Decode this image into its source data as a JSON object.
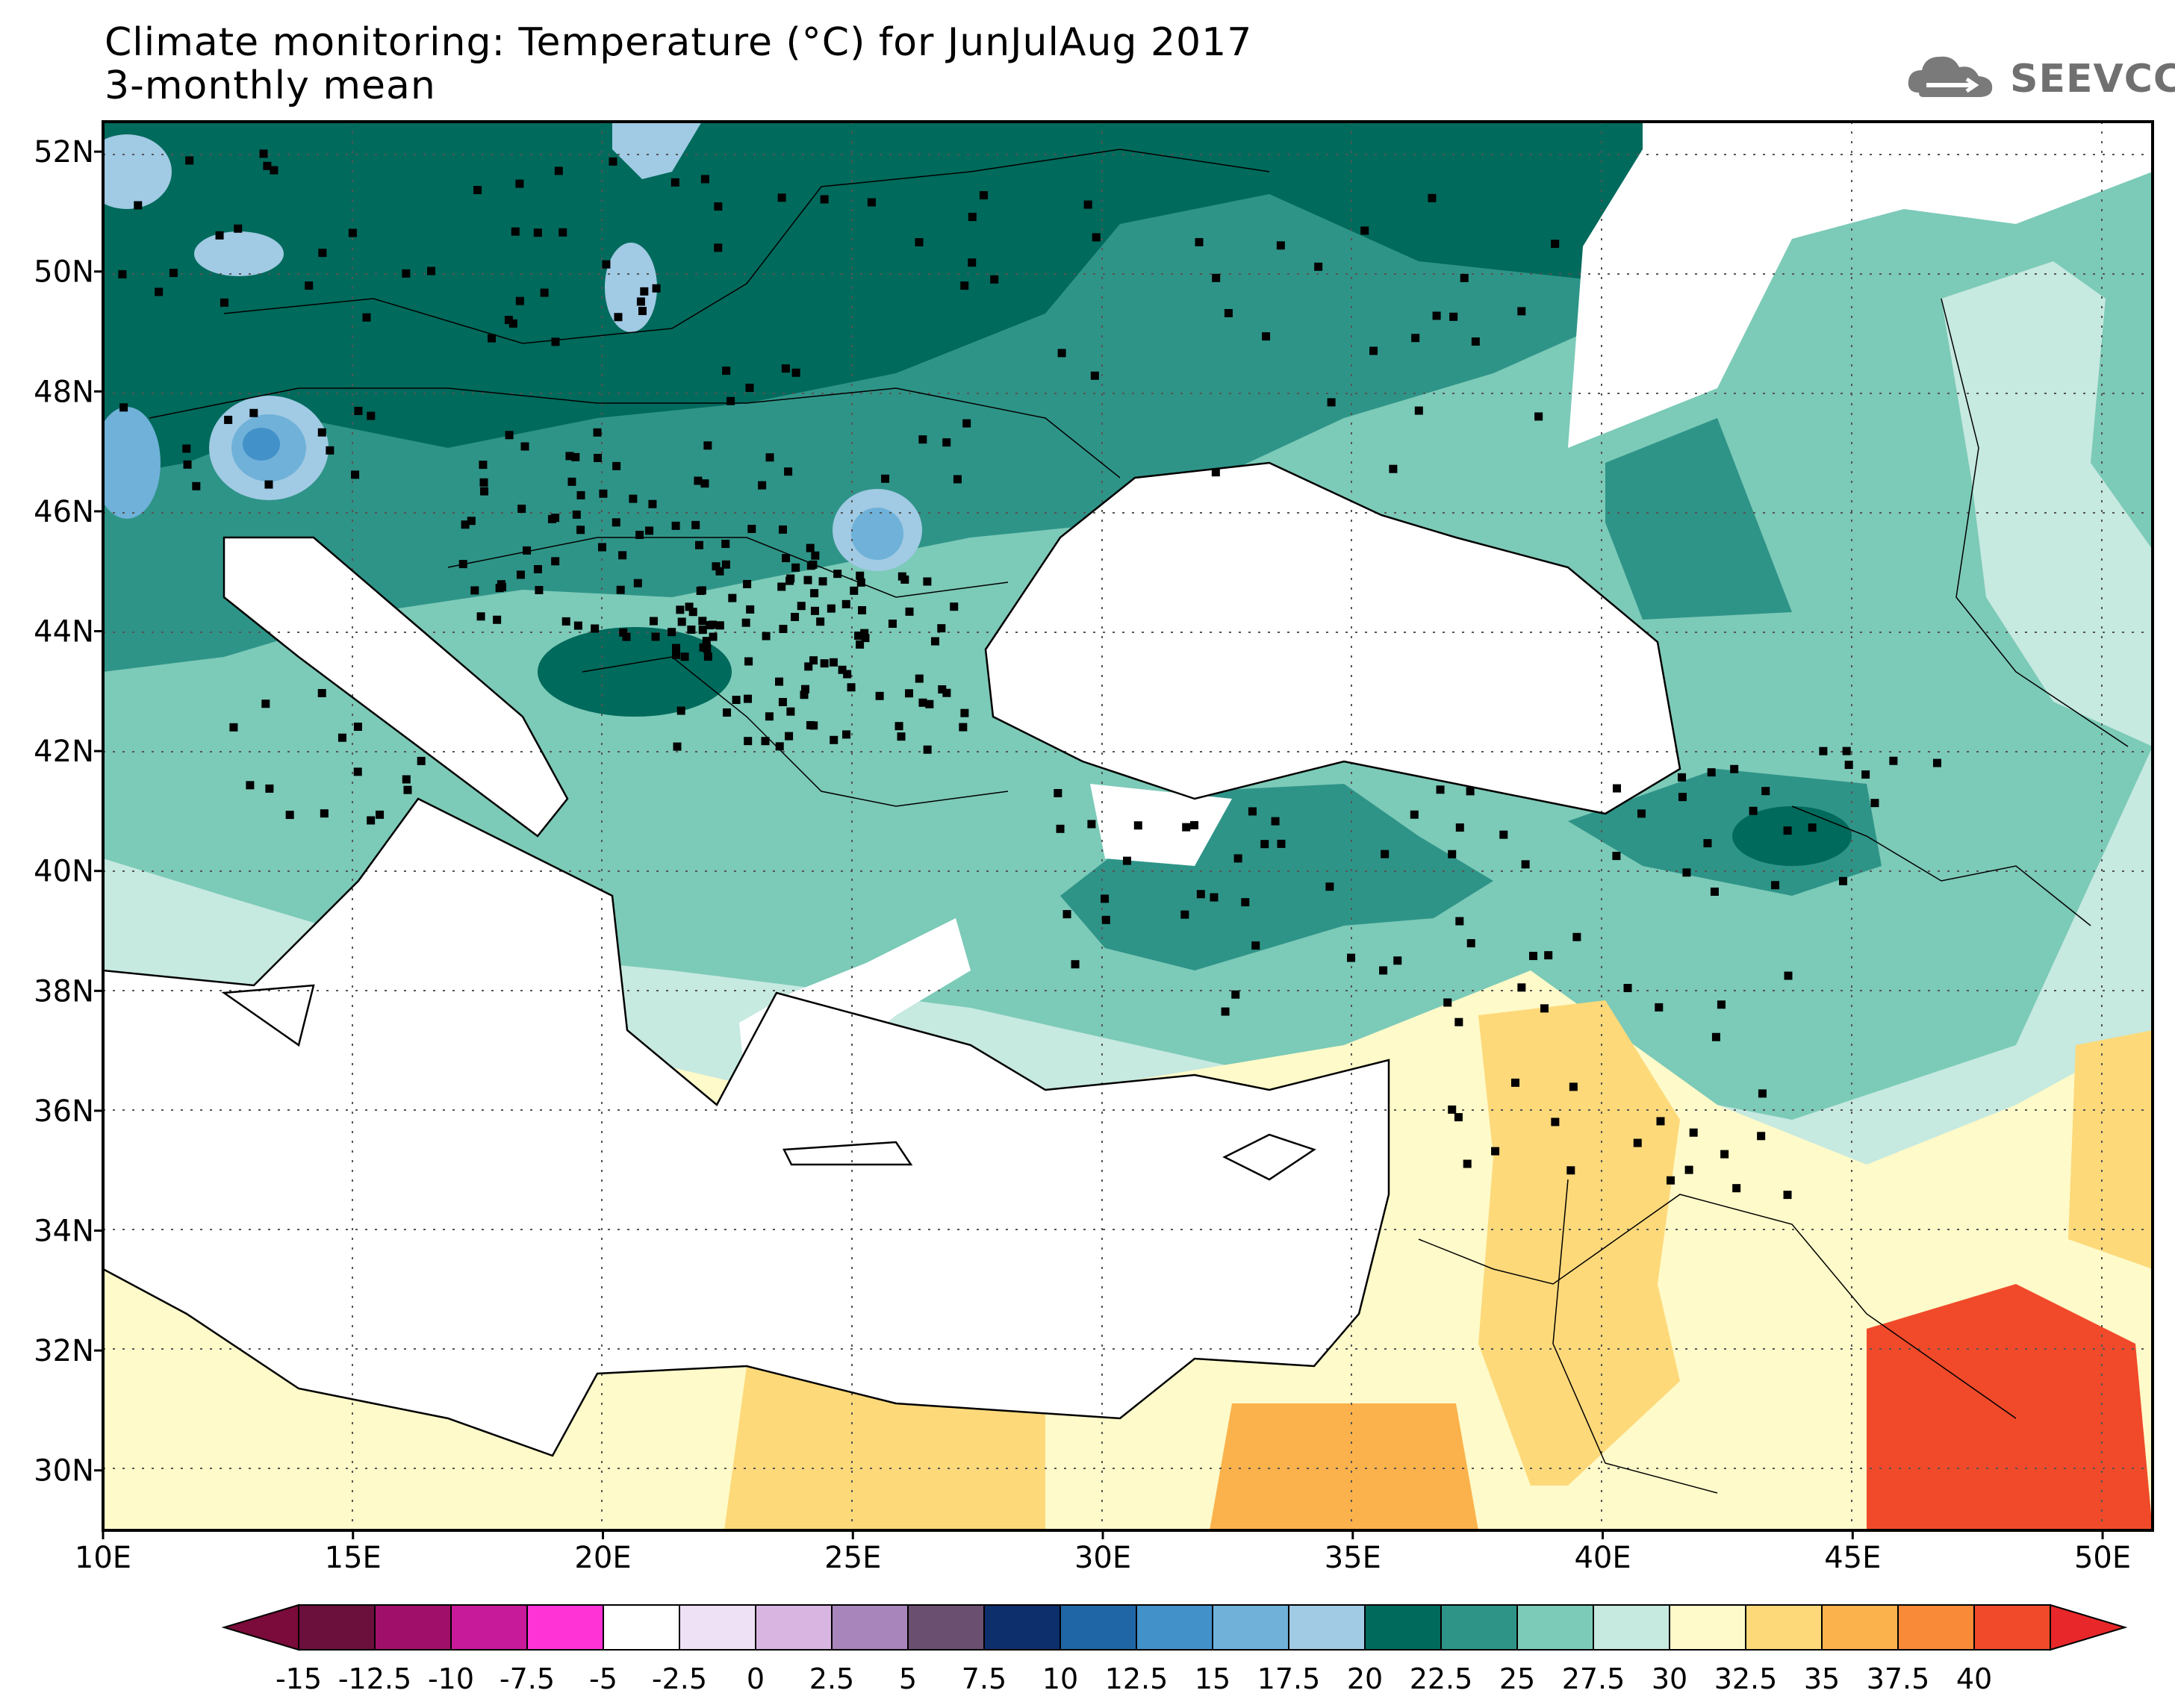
{
  "title_line1": "Climate monitoring: Temperature (°C) for JunJulAug 2017",
  "title_line2": "3-monthly mean",
  "logo_text": "SEEVCCC",
  "lon_labels": [
    "10E",
    "15E",
    "20E",
    "25E",
    "30E",
    "35E",
    "40E",
    "45E",
    "50E"
  ],
  "lat_labels": [
    "52N",
    "50N",
    "48N",
    "46N",
    "44N",
    "42N",
    "40N",
    "38N",
    "36N",
    "34N",
    "32N",
    "30N"
  ],
  "colorbar": {
    "labels": [
      "-15",
      "-12.5",
      "-10",
      "-7.5",
      "-5",
      "-2.5",
      "0",
      "2.5",
      "5",
      "7.5",
      "10",
      "12.5",
      "15",
      "17.5",
      "20",
      "22.5",
      "25",
      "27.5",
      "30",
      "32.5",
      "35",
      "37.5",
      "40"
    ],
    "colors": [
      "#6b0f3d",
      "#a0106a",
      "#c71a9a",
      "#ff33d6",
      "#ffffff",
      "#efe1f5",
      "#d9b5e2",
      "#a885bb",
      "#6b4f70",
      "#0d2f6b",
      "#1f66a6",
      "#4391c9",
      "#6fb1d9",
      "#a1cae4",
      "#006a5c",
      "#2f9488",
      "#7ccab8",
      "#c6e9e0",
      "#fefac9",
      "#fdd97a",
      "#fbb24c",
      "#f98a37",
      "#f04a2a"
    ],
    "under_color": "#7a0b3a",
    "over_color": "#e8272a"
  },
  "chart_data": {
    "type": "map",
    "title": "Climate monitoring: Temperature (°C) for JunJulAug 2017",
    "subtitle": "3-monthly mean",
    "lon_range": [
      10,
      51
    ],
    "lat_range": [
      29,
      52.5
    ],
    "lon_ticks": [
      10,
      15,
      20,
      25,
      30,
      35,
      40,
      45,
      50
    ],
    "lat_ticks": [
      30,
      32,
      34,
      36,
      38,
      40,
      42,
      44,
      46,
      48,
      50,
      52
    ],
    "grid": true,
    "colorbar_levels": [
      -15,
      -12.5,
      -10,
      -7.5,
      -5,
      -2.5,
      0,
      2.5,
      5,
      7.5,
      10,
      12.5,
      15,
      17.5,
      20,
      22.5,
      25,
      27.5,
      30,
      32.5,
      35,
      37.5,
      40
    ]
  }
}
